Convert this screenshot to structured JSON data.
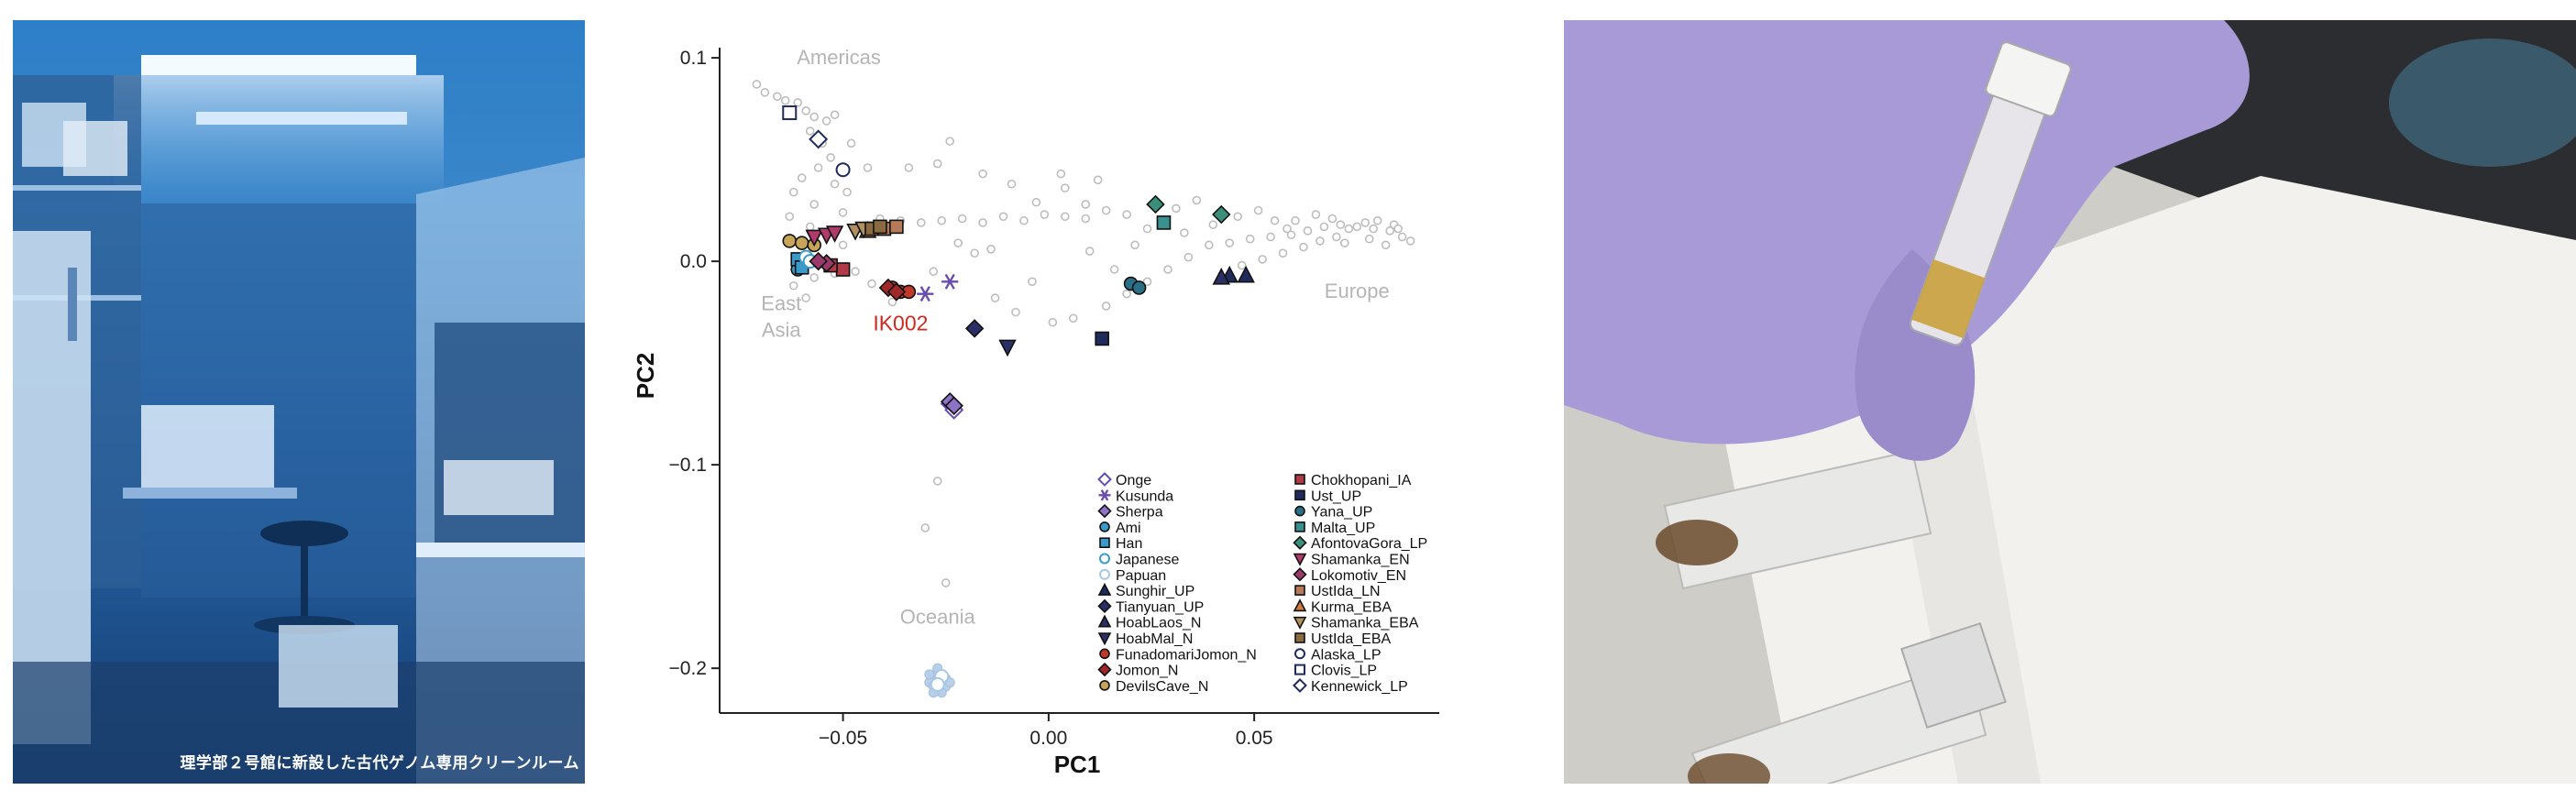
{
  "photo_left": {
    "caption": "理学部２号館に新設した古代ゲノム専用クリーンルーム"
  },
  "chart_data": {
    "type": "scatter",
    "xlabel": "PC1",
    "ylabel": "PC2",
    "xlim": [
      -0.08,
      0.095
    ],
    "ylim": [
      -0.222,
      0.105
    ],
    "xticks": [
      -0.05,
      0.0,
      0.05
    ],
    "xtick_labels": [
      "−0.05",
      "0.00",
      "0.05"
    ],
    "yticks": [
      0.1,
      0.0,
      -0.1,
      -0.2
    ],
    "ytick_labels": [
      "0.1",
      "0.0",
      "−0.1",
      "−0.2"
    ],
    "grid": false,
    "legend_position": "bottom-right",
    "region_labels": [
      {
        "text": "Americas",
        "x": -0.051,
        "y": 0.097,
        "color": "#b5b5b5"
      },
      {
        "text": "East",
        "x": -0.065,
        "y": -0.024,
        "color": "#b5b5b5"
      },
      {
        "text": "Asia",
        "x": -0.065,
        "y": -0.037,
        "color": "#b5b5b5"
      },
      {
        "text": "Europe",
        "x": 0.075,
        "y": -0.018,
        "color": "#b5b5b5"
      },
      {
        "text": "Oceania",
        "x": -0.027,
        "y": -0.178,
        "color": "#b5b5b5"
      },
      {
        "text": "IK002",
        "x": -0.036,
        "y": -0.034,
        "color": "#d0281c"
      }
    ],
    "background_points": [
      [
        -0.071,
        0.087
      ],
      [
        -0.069,
        0.083
      ],
      [
        -0.066,
        0.081
      ],
      [
        -0.064,
        0.079
      ],
      [
        -0.061,
        0.078
      ],
      [
        -0.059,
        0.074
      ],
      [
        -0.057,
        0.071
      ],
      [
        -0.054,
        0.069
      ],
      [
        -0.052,
        0.072
      ],
      [
        -0.058,
        0.064
      ],
      [
        -0.055,
        0.058
      ],
      [
        -0.053,
        0.051
      ],
      [
        -0.056,
        0.046
      ],
      [
        -0.06,
        0.041
      ],
      [
        -0.052,
        0.038
      ],
      [
        -0.049,
        0.034
      ],
      [
        -0.062,
        0.034
      ],
      [
        -0.057,
        0.028
      ],
      [
        -0.063,
        0.022
      ],
      [
        -0.058,
        0.017
      ],
      [
        -0.062,
        -0.012
      ],
      [
        -0.057,
        -0.008
      ],
      [
        -0.052,
        -0.006
      ],
      [
        -0.047,
        -0.005
      ],
      [
        -0.059,
        -0.018
      ],
      [
        -0.05,
        0.008
      ],
      [
        -0.046,
        0.016
      ],
      [
        -0.041,
        0.021
      ],
      [
        -0.036,
        0.02
      ],
      [
        -0.031,
        0.019
      ],
      [
        -0.026,
        0.02
      ],
      [
        -0.021,
        0.021
      ],
      [
        -0.016,
        0.019
      ],
      [
        -0.011,
        0.022
      ],
      [
        -0.006,
        0.02
      ],
      [
        -0.001,
        0.023
      ],
      [
        0.004,
        0.022
      ],
      [
        0.009,
        0.021
      ],
      [
        0.014,
        0.025
      ],
      [
        0.019,
        0.023
      ],
      [
        -0.034,
        0.046
      ],
      [
        -0.027,
        0.048
      ],
      [
        -0.024,
        0.059
      ],
      [
        -0.016,
        0.043
      ],
      [
        -0.009,
        0.038
      ],
      [
        -0.003,
        0.029
      ],
      [
        0.004,
        0.036
      ],
      [
        0.009,
        0.028
      ],
      [
        0.003,
        0.043
      ],
      [
        0.012,
        0.04
      ],
      [
        -0.022,
        0.009
      ],
      [
        -0.018,
        0.004
      ],
      [
        -0.028,
        -0.005
      ],
      [
        -0.013,
        -0.018
      ],
      [
        -0.008,
        -0.025
      ],
      [
        0.001,
        -0.03
      ],
      [
        0.006,
        -0.028
      ],
      [
        0.014,
        -0.022
      ],
      [
        0.019,
        -0.016
      ],
      [
        0.024,
        -0.01
      ],
      [
        0.029,
        -0.004
      ],
      [
        0.034,
        0.002
      ],
      [
        0.039,
        0.008
      ],
      [
        0.044,
        0.009
      ],
      [
        0.049,
        0.011
      ],
      [
        0.054,
        0.012
      ],
      [
        0.059,
        0.013
      ],
      [
        0.063,
        0.015
      ],
      [
        0.067,
        0.017
      ],
      [
        0.071,
        0.018
      ],
      [
        0.075,
        0.017
      ],
      [
        0.079,
        0.016
      ],
      [
        0.083,
        0.015
      ],
      [
        0.086,
        0.012
      ],
      [
        0.088,
        0.01
      ],
      [
        0.077,
        0.019
      ],
      [
        0.073,
        0.016
      ],
      [
        0.066,
        0.01
      ],
      [
        0.062,
        0.007
      ],
      [
        0.057,
        0.004
      ],
      [
        0.052,
        0.001
      ],
      [
        0.047,
        -0.002
      ],
      [
        0.06,
        0.02
      ],
      [
        0.065,
        0.023
      ],
      [
        0.069,
        0.021
      ],
      [
        0.08,
        0.02
      ],
      [
        0.084,
        0.018
      ],
      [
        0.07,
        0.012
      ],
      [
        0.072,
        0.009
      ],
      [
        0.078,
        0.011
      ],
      [
        0.082,
        0.008
      ],
      [
        0.085,
        0.016
      ],
      [
        0.058,
        0.016
      ],
      [
        0.055,
        0.02
      ],
      [
        0.051,
        0.025
      ],
      [
        0.046,
        0.022
      ],
      [
        0.036,
        0.03
      ],
      [
        0.031,
        0.026
      ],
      [
        0.024,
        0.016
      ],
      [
        0.021,
        0.008
      ],
      [
        -0.027,
        -0.108
      ],
      [
        -0.03,
        -0.131
      ],
      [
        -0.025,
        -0.158
      ],
      [
        -0.043,
        -0.011
      ],
      [
        -0.038,
        -0.02
      ],
      [
        -0.014,
        0.006
      ],
      [
        -0.004,
        -0.01
      ],
      [
        0.01,
        0.005
      ],
      [
        0.016,
        -0.004
      ],
      [
        0.033,
        0.014
      ],
      [
        0.04,
        0.018
      ],
      [
        -0.048,
        0.058
      ],
      [
        -0.044,
        0.046
      ],
      [
        -0.05,
        0.024
      ]
    ],
    "oceania_cluster": [
      [
        -0.027,
        -0.201
      ],
      [
        -0.026,
        -0.203
      ],
      [
        -0.028,
        -0.204
      ],
      [
        -0.025,
        -0.205
      ],
      [
        -0.027,
        -0.206
      ],
      [
        -0.029,
        -0.207
      ],
      [
        -0.026,
        -0.208
      ],
      [
        -0.028,
        -0.209
      ],
      [
        -0.025,
        -0.209
      ],
      [
        -0.027,
        -0.211
      ],
      [
        -0.026,
        -0.212
      ],
      [
        -0.028,
        -0.212
      ],
      [
        -0.024,
        -0.207
      ],
      [
        -0.029,
        -0.203
      ],
      [
        -0.027,
        -0.2
      ]
    ],
    "series": [
      {
        "name": "Onge",
        "marker": "diamond-open",
        "color": "#6a4cad",
        "points": [
          [
            -0.024,
            -0.07
          ],
          [
            -0.023,
            -0.073
          ]
        ]
      },
      {
        "name": "Kusunda",
        "marker": "asterisk",
        "color": "#6a4cad",
        "points": [
          [
            -0.024,
            -0.01
          ],
          [
            -0.03,
            -0.016
          ]
        ]
      },
      {
        "name": "Sherpa",
        "marker": "diamond",
        "color": "#8e72c8",
        "points": [
          [
            -0.024,
            -0.069
          ],
          [
            -0.023,
            -0.071
          ]
        ]
      },
      {
        "name": "Ami",
        "marker": "circle",
        "color": "#3a9ac9",
        "points": [
          [
            -0.06,
            -0.001
          ],
          [
            -0.061,
            -0.004
          ]
        ]
      },
      {
        "name": "Han",
        "marker": "square",
        "color": "#3a9ac9",
        "points": [
          [
            -0.061,
            0.001
          ],
          [
            -0.06,
            -0.003
          ]
        ]
      },
      {
        "name": "Japanese",
        "marker": "circle-open",
        "color": "#3a9ac9",
        "points": [
          [
            -0.059,
            0.002
          ],
          [
            -0.058,
            0.0
          ]
        ]
      },
      {
        "name": "Papuan",
        "marker": "circle-open",
        "color": "#a8c8e8",
        "points": [
          [
            -0.026,
            -0.204
          ],
          [
            -0.027,
            -0.208
          ]
        ]
      },
      {
        "name": "Sunghir_UP",
        "marker": "triangle",
        "color": "#1f2b5a",
        "points": [
          [
            0.044,
            -0.007
          ],
          [
            0.048,
            -0.007
          ]
        ]
      },
      {
        "name": "Tianyuan_UP",
        "marker": "diamond",
        "color": "#2a2f66",
        "points": [
          [
            -0.018,
            -0.033
          ]
        ]
      },
      {
        "name": "HoabLaos_N",
        "marker": "triangle",
        "color": "#2a2f66",
        "points": [
          [
            0.042,
            -0.008
          ]
        ]
      },
      {
        "name": "HoabMal_N",
        "marker": "triangle-down",
        "color": "#2a2f66",
        "points": [
          [
            -0.01,
            -0.042
          ]
        ]
      },
      {
        "name": "FunadomariJomon_N",
        "marker": "circle",
        "color": "#c0392b",
        "points": [
          [
            -0.038,
            -0.013
          ],
          [
            -0.036,
            -0.015
          ],
          [
            -0.034,
            -0.015
          ]
        ]
      },
      {
        "name": "Jomon_N",
        "marker": "diamond",
        "color": "#a0282a",
        "points": [
          [
            -0.039,
            -0.013
          ],
          [
            -0.037,
            -0.015
          ]
        ]
      },
      {
        "name": "DevilsCave_N",
        "marker": "circle",
        "color": "#c8a458",
        "points": [
          [
            -0.063,
            0.01
          ],
          [
            -0.06,
            0.009
          ],
          [
            -0.057,
            0.008
          ]
        ]
      },
      {
        "name": "Chokhopani_IA",
        "marker": "square",
        "color": "#b03a48",
        "points": [
          [
            -0.05,
            -0.004
          ],
          [
            -0.053,
            -0.002
          ]
        ]
      },
      {
        "name": "Ust_UP",
        "marker": "square",
        "color": "#1f2b5a",
        "points": [
          [
            0.013,
            -0.038
          ]
        ]
      },
      {
        "name": "Yana_UP",
        "marker": "circle",
        "color": "#2a6f85",
        "points": [
          [
            0.02,
            -0.011
          ],
          [
            0.022,
            -0.013
          ]
        ]
      },
      {
        "name": "Malta_UP",
        "marker": "square",
        "color": "#3a8f8f",
        "points": [
          [
            0.028,
            0.019
          ]
        ]
      },
      {
        "name": "AfontovaGora_LP",
        "marker": "diamond",
        "color": "#3a8f7a",
        "points": [
          [
            0.026,
            0.028
          ],
          [
            0.042,
            0.023
          ]
        ]
      },
      {
        "name": "Shamanka_EN",
        "marker": "triangle-down",
        "color": "#b03a6a",
        "points": [
          [
            -0.057,
            0.012
          ],
          [
            -0.054,
            0.013
          ],
          [
            -0.052,
            0.014
          ]
        ]
      },
      {
        "name": "Lokomotiv_EN",
        "marker": "diamond",
        "color": "#9a3a6a",
        "points": [
          [
            -0.054,
            -0.001
          ],
          [
            -0.056,
            0.0
          ]
        ]
      },
      {
        "name": "UstIda_LN",
        "marker": "square",
        "color": "#b57a5a",
        "points": [
          [
            -0.04,
            0.016
          ],
          [
            -0.037,
            0.017
          ]
        ]
      },
      {
        "name": "Kurma_EBA",
        "marker": "triangle",
        "color": "#c87a40",
        "points": [
          [
            -0.044,
            0.015
          ]
        ]
      },
      {
        "name": "Shamanka_EBA",
        "marker": "triangle-down",
        "color": "#b09060",
        "points": [
          [
            -0.047,
            0.015
          ],
          [
            -0.045,
            0.016
          ]
        ]
      },
      {
        "name": "UstIda_EBA",
        "marker": "square",
        "color": "#8a6a40",
        "points": [
          [
            -0.043,
            0.016
          ],
          [
            -0.041,
            0.017
          ]
        ]
      },
      {
        "name": "Alaska_LP",
        "marker": "circle-open",
        "color": "#1f2b5a",
        "points": [
          [
            -0.05,
            0.045
          ]
        ]
      },
      {
        "name": "Clovis_LP",
        "marker": "square-open",
        "color": "#1f2b5a",
        "points": [
          [
            -0.063,
            0.073
          ]
        ]
      },
      {
        "name": "Kennewick_LP",
        "marker": "diamond-open",
        "color": "#1f2b5a",
        "points": [
          [
            -0.056,
            0.06
          ]
        ]
      }
    ]
  },
  "colors": {
    "axis": "#222222",
    "background_points": "#bdbdbd",
    "photo_left_tint": "#2d7fc8"
  }
}
